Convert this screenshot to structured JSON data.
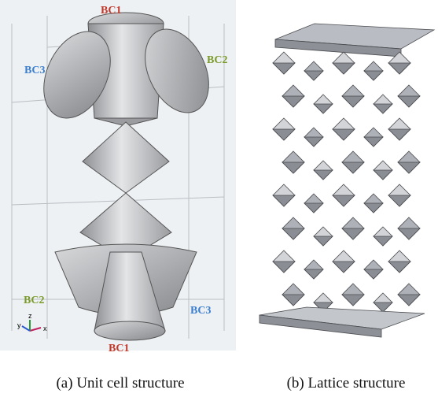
{
  "panel_a": {
    "labels": [
      "BC1",
      "BC3",
      "BC2",
      "BC2",
      "BC3",
      "BC1"
    ],
    "axes": [
      "y",
      "z",
      "x"
    ],
    "caption": "(a) Unit cell structure"
  },
  "panel_b": {
    "caption": "(b) Lattice structure"
  }
}
